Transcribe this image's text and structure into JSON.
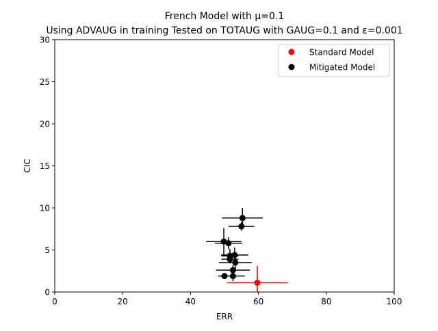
{
  "chart_data": {
    "type": "scatter",
    "title": "French Model with μ=0.1",
    "subtitle": "Using ADVAUG in training Tested on TOTAUG with GAUG=0.1 and ε=0.001",
    "xlabel": "ERR",
    "ylabel": "CIC",
    "xlim": [
      0,
      100
    ],
    "ylim": [
      0,
      30
    ],
    "xticks": [
      "0",
      "20",
      "40",
      "60",
      "80",
      "100"
    ],
    "yticks": [
      "0",
      "5",
      "10",
      "15",
      "20",
      "25",
      "30"
    ],
    "grid": false,
    "legend_position": "top-right",
    "series": [
      {
        "name": "Standard Model",
        "color": "#ff0000",
        "points": [
          {
            "x": 59.7,
            "y": 1.1,
            "xerr": 9.0,
            "yerr": 2.0
          }
        ]
      },
      {
        "name": "Mitigated Model",
        "color": "#000000",
        "points": [
          {
            "x": 55.3,
            "y": 8.8,
            "xerr": 6.0,
            "yerr": 1.2
          },
          {
            "x": 55.0,
            "y": 7.8,
            "xerr": 3.8,
            "yerr": 0.5
          },
          {
            "x": 49.8,
            "y": 6.0,
            "xerr": 5.2,
            "yerr": 1.6
          },
          {
            "x": 51.2,
            "y": 5.8,
            "xerr": 4.0,
            "yerr": 0.7
          },
          {
            "x": 53.0,
            "y": 4.4,
            "xerr": 4.0,
            "yerr": 0.9
          },
          {
            "x": 51.6,
            "y": 4.3,
            "xerr": 2.5,
            "yerr": 0.8
          },
          {
            "x": 51.6,
            "y": 3.9,
            "xerr": 2.5,
            "yerr": 0.5
          },
          {
            "x": 53.2,
            "y": 3.5,
            "xerr": 4.8,
            "yerr": 0.8
          },
          {
            "x": 52.5,
            "y": 2.6,
            "xerr": 5.0,
            "yerr": 0.6
          },
          {
            "x": 50.0,
            "y": 1.9,
            "xerr": 1.8,
            "yerr": 0.3
          },
          {
            "x": 52.5,
            "y": 1.9,
            "xerr": 3.5,
            "yerr": 0.6
          }
        ]
      }
    ]
  }
}
